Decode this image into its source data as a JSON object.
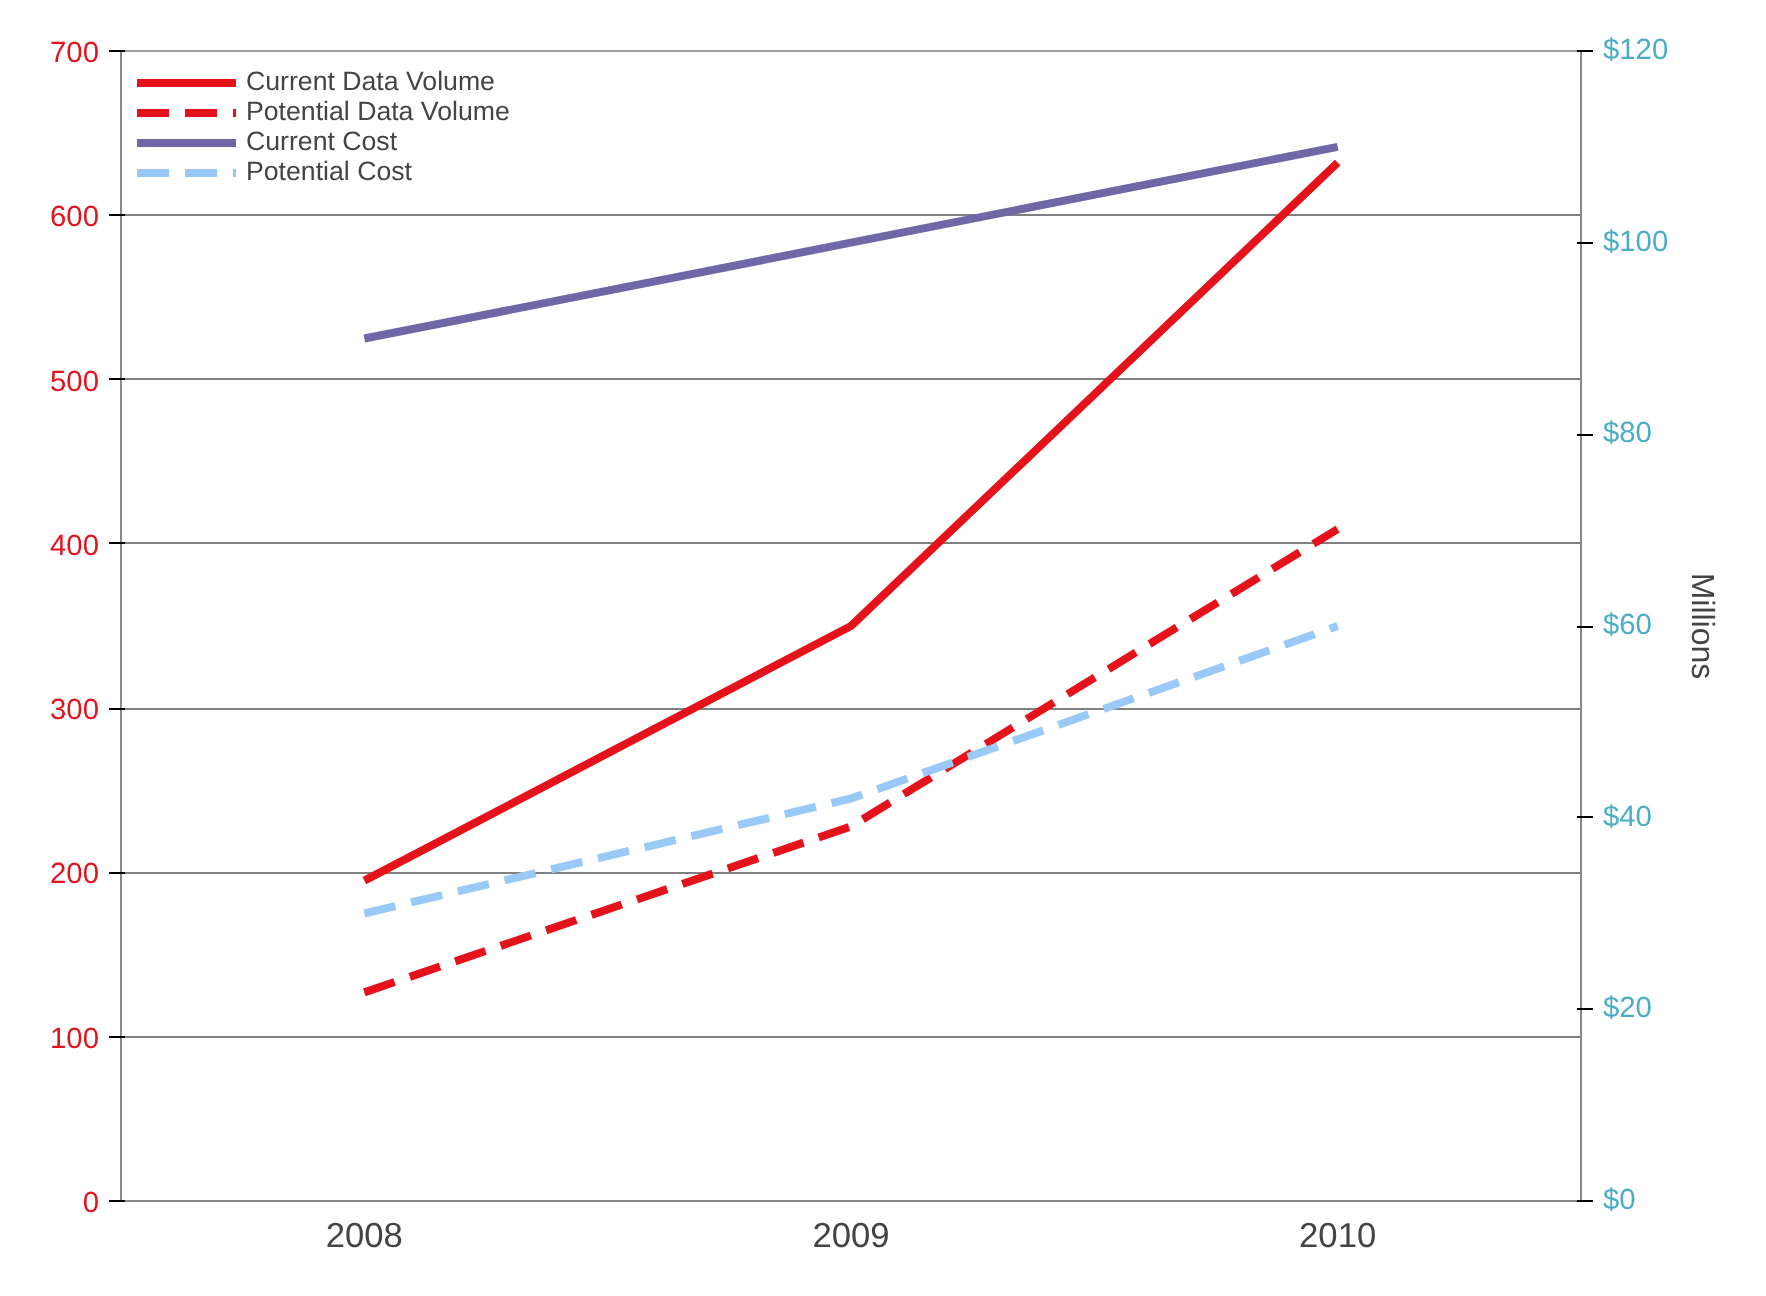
{
  "chart_data": {
    "type": "line",
    "categories": [
      "2008",
      "2009",
      "2010"
    ],
    "y2label": "Millions",
    "ylim": [
      0,
      700
    ],
    "yticks": [
      0,
      100,
      200,
      300,
      400,
      500,
      600,
      700
    ],
    "y2lim": [
      0,
      120
    ],
    "y2ticks": [
      {
        "value": 0,
        "label": "$0"
      },
      {
        "value": 20,
        "label": "$20"
      },
      {
        "value": 40,
        "label": "$40"
      },
      {
        "value": 60,
        "label": "$60"
      },
      {
        "value": 80,
        "label": "$80"
      },
      {
        "value": 100,
        "label": "$100"
      },
      {
        "value": 120,
        "label": "$120"
      }
    ],
    "grid": "y",
    "legend": "top left",
    "series": [
      {
        "name": "Current Data Volume",
        "color": "#e3121b",
        "values": [
          195,
          350,
          632
        ],
        "line_style": "solid"
      },
      {
        "name": "Potential Data Volume",
        "color": "#e3121b",
        "values": [
          127,
          228,
          409
        ],
        "line_style": "dashed"
      },
      {
        "name": "Current Cost",
        "color": "#6f68a6",
        "values": [
          90,
          100,
          110
        ],
        "line_style": "solid",
        "axis": "y2"
      },
      {
        "name": "Potential Cost",
        "color": "#99c9f7",
        "values": [
          30,
          42,
          60
        ],
        "line_style": "dashed",
        "axis": "y2"
      }
    ]
  }
}
